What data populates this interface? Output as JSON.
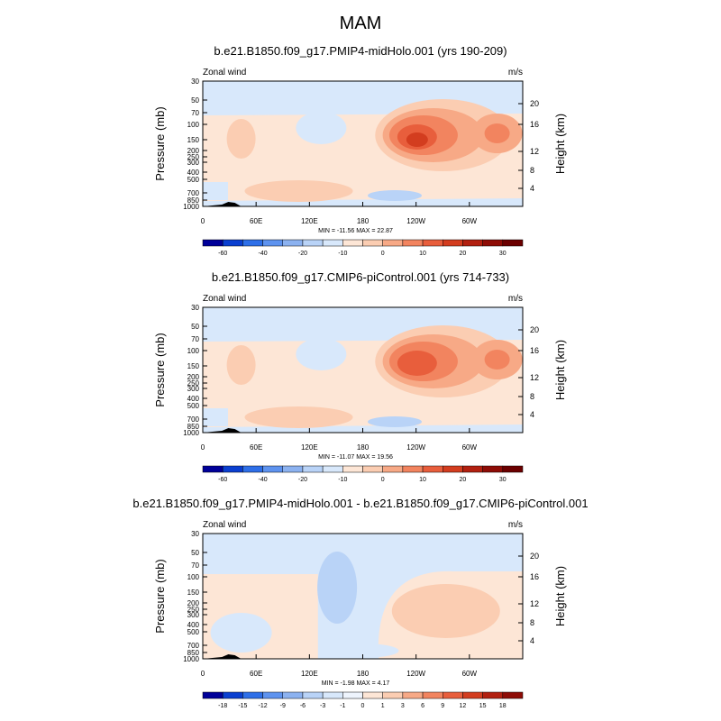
{
  "figure": {
    "title": "MAM"
  },
  "chart_data": [
    {
      "type": "heatmap",
      "title": "b.e21.B1850.f09_g17.PMIP4-midHolo.001 (yrs 190-209)",
      "left_label": "Zonal wind",
      "right_label": "m/s",
      "ylabel": "Pressure (mb)",
      "ylabel_right": "Height (km)",
      "x_ticks": [
        "0",
        "60E",
        "120E",
        "180",
        "120W",
        "60W"
      ],
      "y_ticks": [
        "30",
        "50",
        "70",
        "100",
        "150",
        "200",
        "250",
        "300",
        "400",
        "500",
        "700",
        "850",
        "1000"
      ],
      "height_ticks": [
        "4",
        "8",
        "12",
        "16",
        "20"
      ],
      "stats": "MIN = -11.56   MAX =  22.87",
      "colorbar_labels": [
        "-60",
        "-40",
        "-20",
        "-10",
        "0",
        "10",
        "20",
        "30"
      ],
      "colorbar_colors": [
        "#000099",
        "#0a3fd0",
        "#2e6fe8",
        "#5e93ef",
        "#8cb2f0",
        "#b9d3f7",
        "#d8e8fb",
        "#fde6d6",
        "#fbcdb2",
        "#f7a986",
        "#f2845f",
        "#e85e3c",
        "#d33d1f",
        "#b22010",
        "#8e0c06",
        "#6b0000"
      ],
      "max": 22.87,
      "min": -11.56
    },
    {
      "type": "heatmap",
      "title": "b.e21.B1850.f09_g17.CMIP6-piControl.001 (yrs 714-733)",
      "left_label": "Zonal wind",
      "right_label": "m/s",
      "ylabel": "Pressure (mb)",
      "ylabel_right": "Height (km)",
      "x_ticks": [
        "0",
        "60E",
        "120E",
        "180",
        "120W",
        "60W"
      ],
      "y_ticks": [
        "30",
        "50",
        "70",
        "100",
        "150",
        "200",
        "250",
        "300",
        "400",
        "500",
        "700",
        "850",
        "1000"
      ],
      "height_ticks": [
        "4",
        "8",
        "12",
        "16",
        "20"
      ],
      "stats": "MIN = -11.07   MAX =  19.56",
      "colorbar_labels": [
        "-60",
        "-40",
        "-20",
        "-10",
        "0",
        "10",
        "20",
        "30"
      ],
      "colorbar_colors": [
        "#000099",
        "#0a3fd0",
        "#2e6fe8",
        "#5e93ef",
        "#8cb2f0",
        "#b9d3f7",
        "#d8e8fb",
        "#fde6d6",
        "#fbcdb2",
        "#f7a986",
        "#f2845f",
        "#e85e3c",
        "#d33d1f",
        "#b22010",
        "#8e0c06",
        "#6b0000"
      ],
      "max": 19.56,
      "min": -11.07
    },
    {
      "type": "heatmap",
      "title": "b.e21.B1850.f09_g17.PMIP4-midHolo.001 - b.e21.B1850.f09_g17.CMIP6-piControl.001",
      "left_label": "Zonal wind",
      "right_label": "m/s",
      "ylabel": "Pressure (mb)",
      "ylabel_right": "Height (km)",
      "x_ticks": [
        "0",
        "60E",
        "120E",
        "180",
        "120W",
        "60W"
      ],
      "y_ticks": [
        "30",
        "50",
        "70",
        "100",
        "150",
        "200",
        "250",
        "300",
        "400",
        "500",
        "700",
        "850",
        "1000"
      ],
      "height_ticks": [
        "4",
        "8",
        "12",
        "16",
        "20"
      ],
      "stats": "MIN = -1.98   MAX =  4.17",
      "colorbar_labels": [
        "-18",
        "-15",
        "-12",
        "-9",
        "-6",
        "-3",
        "-1",
        "0",
        "1",
        "3",
        "6",
        "9",
        "12",
        "15",
        "18"
      ],
      "colorbar_colors": [
        "#000099",
        "#0a3fd0",
        "#2e6fe8",
        "#5e93ef",
        "#8cb2f0",
        "#b9d3f7",
        "#d8e8fb",
        "#eef4fd",
        "#fde6d6",
        "#fbcdb2",
        "#f7a986",
        "#f2845f",
        "#e85e3c",
        "#d33d1f",
        "#b22010",
        "#8e0c06"
      ],
      "max": 4.17,
      "min": -1.98
    }
  ]
}
